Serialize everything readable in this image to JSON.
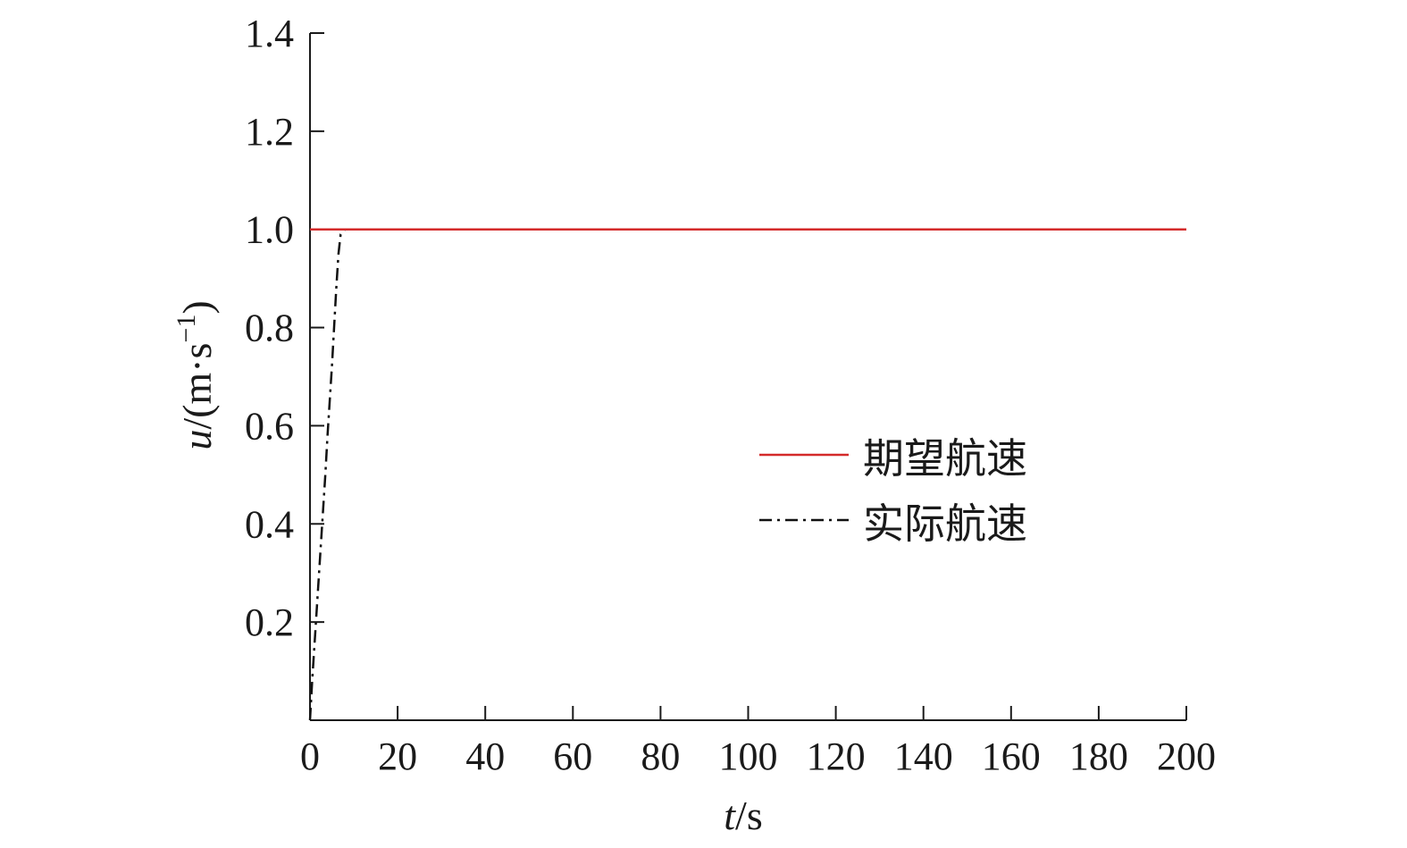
{
  "chart_data": {
    "type": "line",
    "xlabel_var": "t",
    "xlabel_unit": "/s",
    "ylabel_var": "u",
    "ylabel_pre": "/(m·s",
    "ylabel_sup": "−1",
    "ylabel_post": ")",
    "xlim": [
      0,
      200
    ],
    "ylim": [
      0,
      1.4
    ],
    "xticks": [
      0,
      20,
      40,
      60,
      80,
      100,
      120,
      140,
      160,
      180,
      200
    ],
    "yticks": [
      0.2,
      0.4,
      0.6,
      0.8,
      1.0,
      1.2,
      1.4
    ],
    "ytick_labels": [
      "0.2",
      "0.4",
      "0.6",
      "0.8",
      "1.0",
      "1.2",
      "1.4"
    ],
    "grid": false,
    "legend_position": "center-right",
    "series": [
      {
        "name": "期望航速",
        "color": "#d42a2a",
        "style": "solid",
        "x": [
          0,
          200
        ],
        "y": [
          1.0,
          1.0
        ]
      },
      {
        "name": "实际航速",
        "color": "#111111",
        "style": "dashdot",
        "x": [
          0,
          0.5,
          1,
          1.5,
          2,
          2.5,
          3,
          3.5,
          4,
          4.5,
          5,
          5.5,
          6,
          6.5,
          7,
          8,
          10,
          200
        ],
        "y": [
          0,
          0.08,
          0.15,
          0.22,
          0.29,
          0.36,
          0.43,
          0.5,
          0.58,
          0.65,
          0.72,
          0.8,
          0.88,
          0.95,
          0.99,
          1.0,
          1.0,
          1.0
        ]
      }
    ]
  }
}
